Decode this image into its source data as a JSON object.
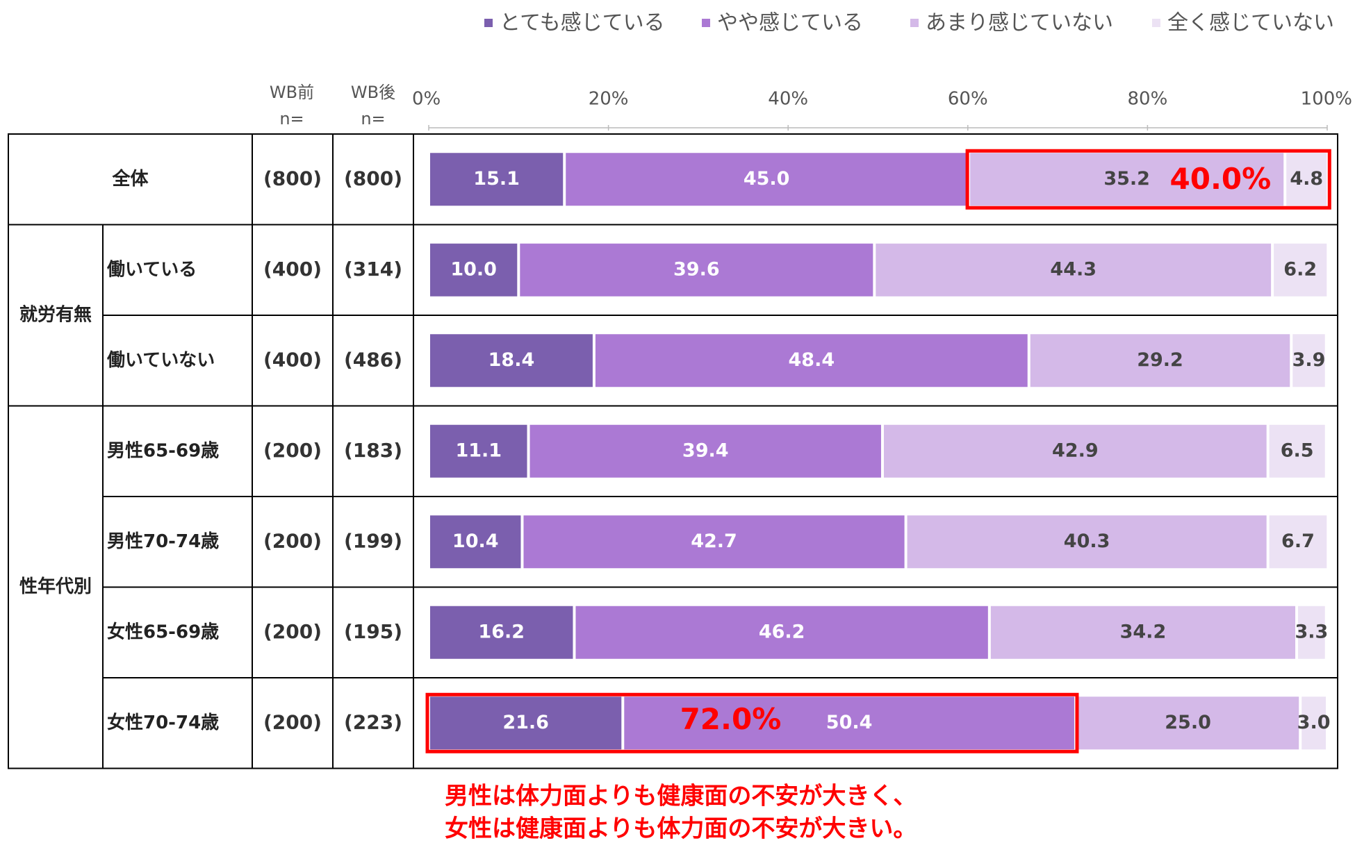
{
  "chart_data": {
    "type": "bar",
    "orientation": "horizontal",
    "stacked": true,
    "legend": [
      {
        "name": "とても感じている",
        "color": "#7b5fae"
      },
      {
        "name": "やや感じている",
        "color": "#ab79d4"
      },
      {
        "name": "あまり感じていない",
        "color": "#d4b9e8"
      },
      {
        "name": "全く感じていない",
        "color": "#ece2f4"
      }
    ],
    "legend_position": "top-right",
    "xaxis_ticks": [
      "0%",
      "20%",
      "40%",
      "60%",
      "80%",
      "100%"
    ],
    "xlim": [
      0,
      100
    ],
    "headers": {
      "before": "WB前",
      "after": "WB後",
      "n": "n="
    },
    "rows": [
      {
        "group": "",
        "label": "全体",
        "n_before": "(800)",
        "n_after": "(800)",
        "values": [
          15.1,
          45.0,
          35.2,
          4.8
        ]
      },
      {
        "group": "就労有無",
        "label": "働いている",
        "n_before": "(400)",
        "n_after": "(314)",
        "values": [
          10.0,
          39.6,
          44.3,
          6.2
        ]
      },
      {
        "group": "就労有無",
        "label": "働いていない",
        "n_before": "(400)",
        "n_after": "(486)",
        "values": [
          18.4,
          48.4,
          29.2,
          3.9
        ]
      },
      {
        "group": "性年代別",
        "label": "男性65-69歳",
        "n_before": "(200)",
        "n_after": "(183)",
        "values": [
          11.1,
          39.4,
          42.9,
          6.5
        ]
      },
      {
        "group": "性年代別",
        "label": "男性70-74歳",
        "n_before": "(200)",
        "n_after": "(199)",
        "values": [
          10.4,
          42.7,
          40.3,
          6.7
        ]
      },
      {
        "group": "性年代別",
        "label": "女性65-69歳",
        "n_before": "(200)",
        "n_after": "(195)",
        "values": [
          16.2,
          46.2,
          34.2,
          3.3
        ]
      },
      {
        "group": "性年代別",
        "label": "女性70-74歳",
        "n_before": "(200)",
        "n_after": "(223)",
        "values": [
          21.6,
          50.4,
          25.0,
          3.0
        ]
      }
    ],
    "groups": [
      "就労有無",
      "性年代別"
    ],
    "highlights": [
      {
        "row": 0,
        "from_segment": 2,
        "to_segment": 3,
        "label": "40.0%"
      },
      {
        "row": 6,
        "from_segment": 0,
        "to_segment": 1,
        "label": "72.0%"
      }
    ],
    "note_lines": [
      "男性は体力面よりも健康面の不安が大きく、",
      "女性は健康面よりも体力面の不安が大きい。"
    ]
  }
}
